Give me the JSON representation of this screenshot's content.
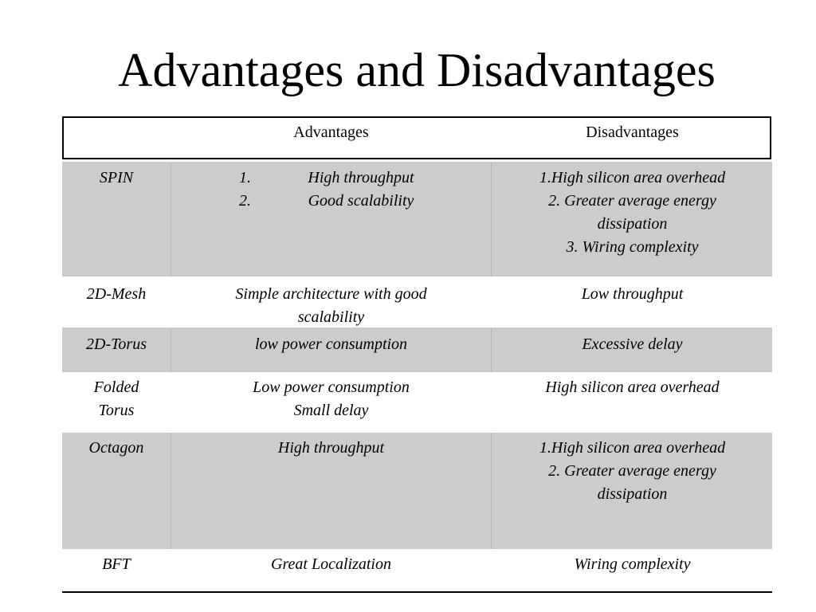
{
  "title": "Advantages and Disadvantages",
  "table": {
    "headers": {
      "advantages": "Advantages",
      "disadvantages": "Disadvantages"
    },
    "rows": [
      {
        "name": "SPIN",
        "advantages": [
          {
            "num": "1.",
            "text": "High throughput"
          },
          {
            "num": "2.",
            "text": "Good scalability"
          }
        ],
        "disadvantages": [
          "1.High silicon area overhead",
          "2. Greater average energy",
          "dissipation",
          "3. Wiring complexity"
        ]
      },
      {
        "name": "2D-Mesh",
        "advantages": [
          "Simple architecture with good",
          "scalability"
        ],
        "disadvantages": [
          "Low throughput"
        ]
      },
      {
        "name": "2D-Torus",
        "advantages": [
          "low power consumption"
        ],
        "disadvantages": [
          "Excessive delay"
        ]
      },
      {
        "name_lines": [
          "Folded",
          "Torus"
        ],
        "advantages": [
          "Low power consumption",
          "Small delay"
        ],
        "disadvantages": [
          "High silicon area overhead"
        ]
      },
      {
        "name": "Octagon",
        "advantages": [
          "High throughput"
        ],
        "disadvantages": [
          "1.High silicon area overhead",
          "2. Greater average energy",
          "dissipation"
        ]
      },
      {
        "name": "BFT",
        "advantages": [
          "Great Localization"
        ],
        "disadvantages": [
          "Wiring complexity"
        ]
      }
    ]
  },
  "colors": {
    "shaded_row": "#cccccc",
    "text": "#000000",
    "background": "#ffffff"
  }
}
